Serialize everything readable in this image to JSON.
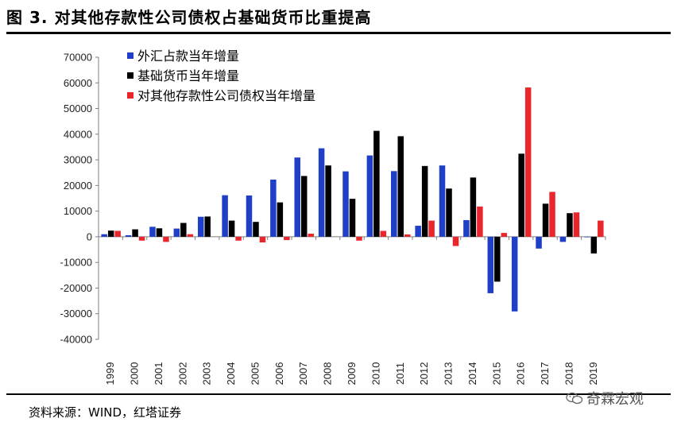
{
  "header": {
    "title": "图 3. 对其他存款性公司债权占基础货币比重提高"
  },
  "footer": {
    "source": "资料来源：WIND，红塔证券",
    "watermark": "奇霖宏观",
    "watermark_icon": "wechat-icon"
  },
  "chart_data": {
    "type": "bar",
    "title": "",
    "xlabel": "",
    "ylabel": "",
    "ylim": [
      -40000,
      70000
    ],
    "yticks": [
      "70000",
      "60000",
      "50000",
      "40000",
      "30000",
      "20000",
      "10000",
      "0",
      "-10000",
      "-20000",
      "-30000",
      "-40000"
    ],
    "categories": [
      "1999",
      "2000",
      "2001",
      "2002",
      "2003",
      "2004",
      "2005",
      "2006",
      "2007",
      "2008",
      "2009",
      "2010",
      "2011",
      "2012",
      "2013",
      "2014",
      "2015",
      "2016",
      "2017",
      "2018",
      "2019"
    ],
    "legend_position": "top-left",
    "series": [
      {
        "name": "外汇占款当年增量",
        "color": "#1f3fc8",
        "values": [
          1000,
          600,
          3900,
          3200,
          7800,
          16200,
          16100,
          22300,
          30900,
          34500,
          25500,
          31700,
          25600,
          4300,
          27800,
          6500,
          -22000,
          -29100,
          -4600,
          -2000,
          -200
        ]
      },
      {
        "name": "基础货币当年增量",
        "color": "#000000",
        "values": [
          2400,
          2900,
          3300,
          5400,
          7900,
          6300,
          5800,
          13400,
          23700,
          27800,
          14800,
          41300,
          39200,
          27600,
          18800,
          23100,
          -17500,
          32400,
          12900,
          9200,
          -6500
        ]
      },
      {
        "name": "对其他存款性公司债权当年增量",
        "color": "#e8262b",
        "values": [
          2300,
          -1500,
          -2000,
          1000,
          0,
          -1500,
          -2200,
          -1300,
          1200,
          0,
          -1500,
          2300,
          900,
          6300,
          -3600,
          11800,
          1500,
          58200,
          17500,
          9500,
          6300
        ]
      }
    ]
  }
}
